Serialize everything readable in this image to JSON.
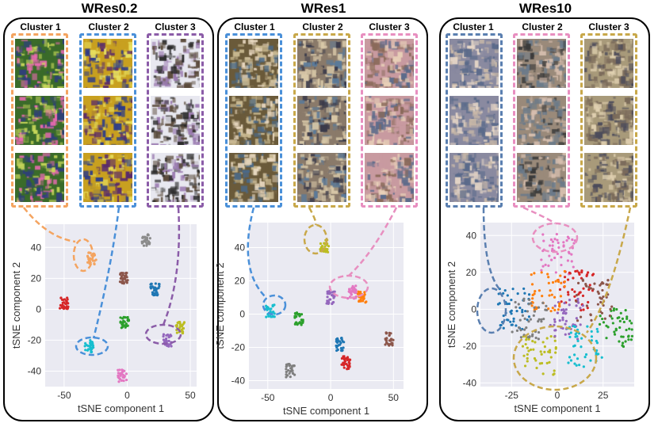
{
  "panels": [
    {
      "title": "WRes0.2",
      "clusters": [
        "Cluster 1",
        "Cluster 2",
        "Cluster 3"
      ]
    },
    {
      "title": "WRes1",
      "clusters": [
        "Cluster 1",
        "Cluster 2",
        "Cluster 3"
      ]
    },
    {
      "title": "WRes10",
      "clusters": [
        "Cluster 1",
        "Cluster 2",
        "Cluster 3"
      ]
    }
  ],
  "colors": {
    "orange": "#f4a460",
    "blue": "#4a90d9",
    "purple": "#8b5ca8",
    "yellow": "#c8a84a",
    "pink": "#e88fc0",
    "slateblue": "#5a7fb0"
  },
  "chart_data": [
    {
      "type": "scatter",
      "title": "WRes0.2",
      "xlabel": "tSNE component 1",
      "ylabel": "tSNE component 2",
      "xticks": [
        "-50",
        "0",
        "50"
      ],
      "yticks": [
        "40",
        "20",
        "0",
        "-20",
        "-40"
      ],
      "xlim": [
        -65,
        55
      ],
      "ylim": [
        -50,
        55
      ],
      "clusters": [
        {
          "color": "#f4a460",
          "cx": -28,
          "cy": 33
        },
        {
          "color": "#8c8c8c",
          "cx": 15,
          "cy": 45
        },
        {
          "color": "#8c564b",
          "cx": -3,
          "cy": 20
        },
        {
          "color": "#1f77b4",
          "cx": 22,
          "cy": 13
        },
        {
          "color": "#d62728",
          "cx": -50,
          "cy": 4
        },
        {
          "color": "#2ca02c",
          "cx": -2,
          "cy": -8
        },
        {
          "color": "#bcbd22",
          "cx": 42,
          "cy": -12
        },
        {
          "color": "#17becf",
          "cx": -30,
          "cy": -24
        },
        {
          "color": "#9467bd",
          "cx": 32,
          "cy": -20
        },
        {
          "color": "#e377c2",
          "cx": -4,
          "cy": -43
        }
      ]
    },
    {
      "type": "scatter",
      "title": "WRes1",
      "xlabel": "tSNE component 1",
      "ylabel": "tSNE component 2",
      "xticks": [
        "-50",
        "0",
        "50"
      ],
      "yticks": [
        "40",
        "20",
        "0",
        "-20",
        "-40"
      ],
      "xlim": [
        -65,
        58
      ],
      "ylim": [
        -45,
        55
      ],
      "clusters": [
        {
          "color": "#bcbd22",
          "cx": -5,
          "cy": 41
        },
        {
          "color": "#9467bd",
          "cx": 0,
          "cy": 10
        },
        {
          "color": "#e377c2",
          "cx": 17,
          "cy": 13
        },
        {
          "color": "#ff7f0e",
          "cx": 25,
          "cy": 11
        },
        {
          "color": "#2ca02c",
          "cx": -25,
          "cy": -3
        },
        {
          "color": "#17becf",
          "cx": -48,
          "cy": 2
        },
        {
          "color": "#1f77b4",
          "cx": 7,
          "cy": -18
        },
        {
          "color": "#8c564b",
          "cx": 47,
          "cy": -15
        },
        {
          "color": "#d62728",
          "cx": 12,
          "cy": -29
        },
        {
          "color": "#7f7f7f",
          "cx": -32,
          "cy": -34
        }
      ]
    },
    {
      "type": "scatter",
      "title": "WRes10",
      "xlabel": "tSNE component 1",
      "ylabel": "tSNE component 2",
      "xticks": [
        "-25",
        "0",
        "25"
      ],
      "yticks": [
        "40",
        "20",
        "0",
        "-20",
        "-40"
      ],
      "xlim": [
        -42,
        42
      ],
      "ylim": [
        -42,
        47
      ],
      "clusters": [
        {
          "color": "#e377c2",
          "cx": 0,
          "cy": 30
        },
        {
          "color": "#1f77b4",
          "cx": -25,
          "cy": 0
        },
        {
          "color": "#bcbd22",
          "cx": -10,
          "cy": -25
        },
        {
          "color": "#2ca02c",
          "cx": 32,
          "cy": -10
        },
        {
          "color": "#d62728",
          "cx": 10,
          "cy": 10
        },
        {
          "color": "#9467bd",
          "cx": 5,
          "cy": -5
        },
        {
          "color": "#8c564b",
          "cx": 20,
          "cy": 5
        },
        {
          "color": "#ff7f0e",
          "cx": -5,
          "cy": 10
        },
        {
          "color": "#17becf",
          "cx": 15,
          "cy": -20
        },
        {
          "color": "#7f7f7f",
          "cx": -15,
          "cy": -5
        }
      ]
    }
  ]
}
